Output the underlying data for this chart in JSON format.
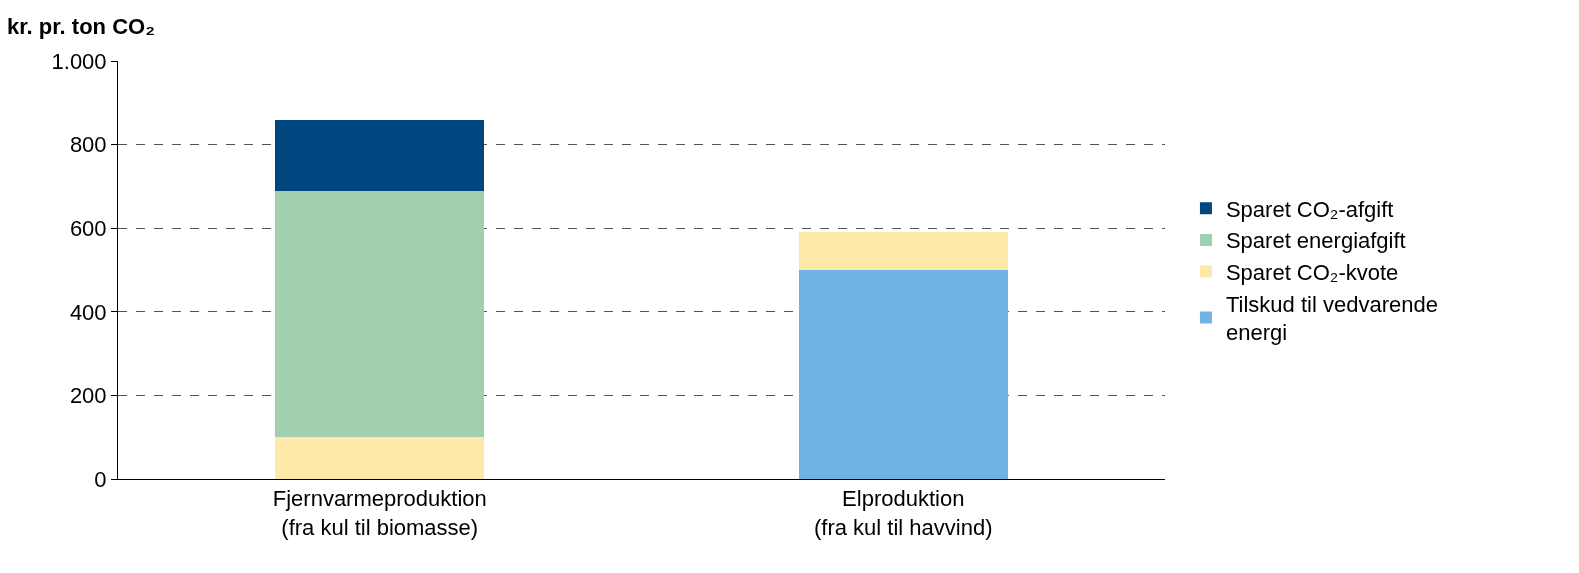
{
  "chart_data": {
    "type": "bar",
    "ylabel": "kr. pr. ton CO₂",
    "stacked": true,
    "categories": [
      "Fjernvarmeproduktion (fra kul til biomasse)",
      "Elproduktion (fra kul til havvind)"
    ],
    "series": [
      {
        "name": "Tilskud til vedvarende energi",
        "color": "#6fb3e3",
        "values": [
          0,
          500
        ]
      },
      {
        "name": "Sparet CO₂-kvote",
        "color": "#fde9a9",
        "values": [
          100,
          90
        ]
      },
      {
        "name": "Sparet energiafgift",
        "color": "#a1d0b0",
        "values": [
          590,
          0
        ]
      },
      {
        "name": "Sparet CO₂-afgift",
        "color": "#00467f",
        "values": [
          170,
          0
        ]
      }
    ],
    "ylim": [
      0,
      1000
    ],
    "yticks": [
      0,
      200,
      400,
      600,
      800,
      {
        "value": 1000,
        "label": "1.000"
      }
    ],
    "grid": "y",
    "legend": "right"
  }
}
